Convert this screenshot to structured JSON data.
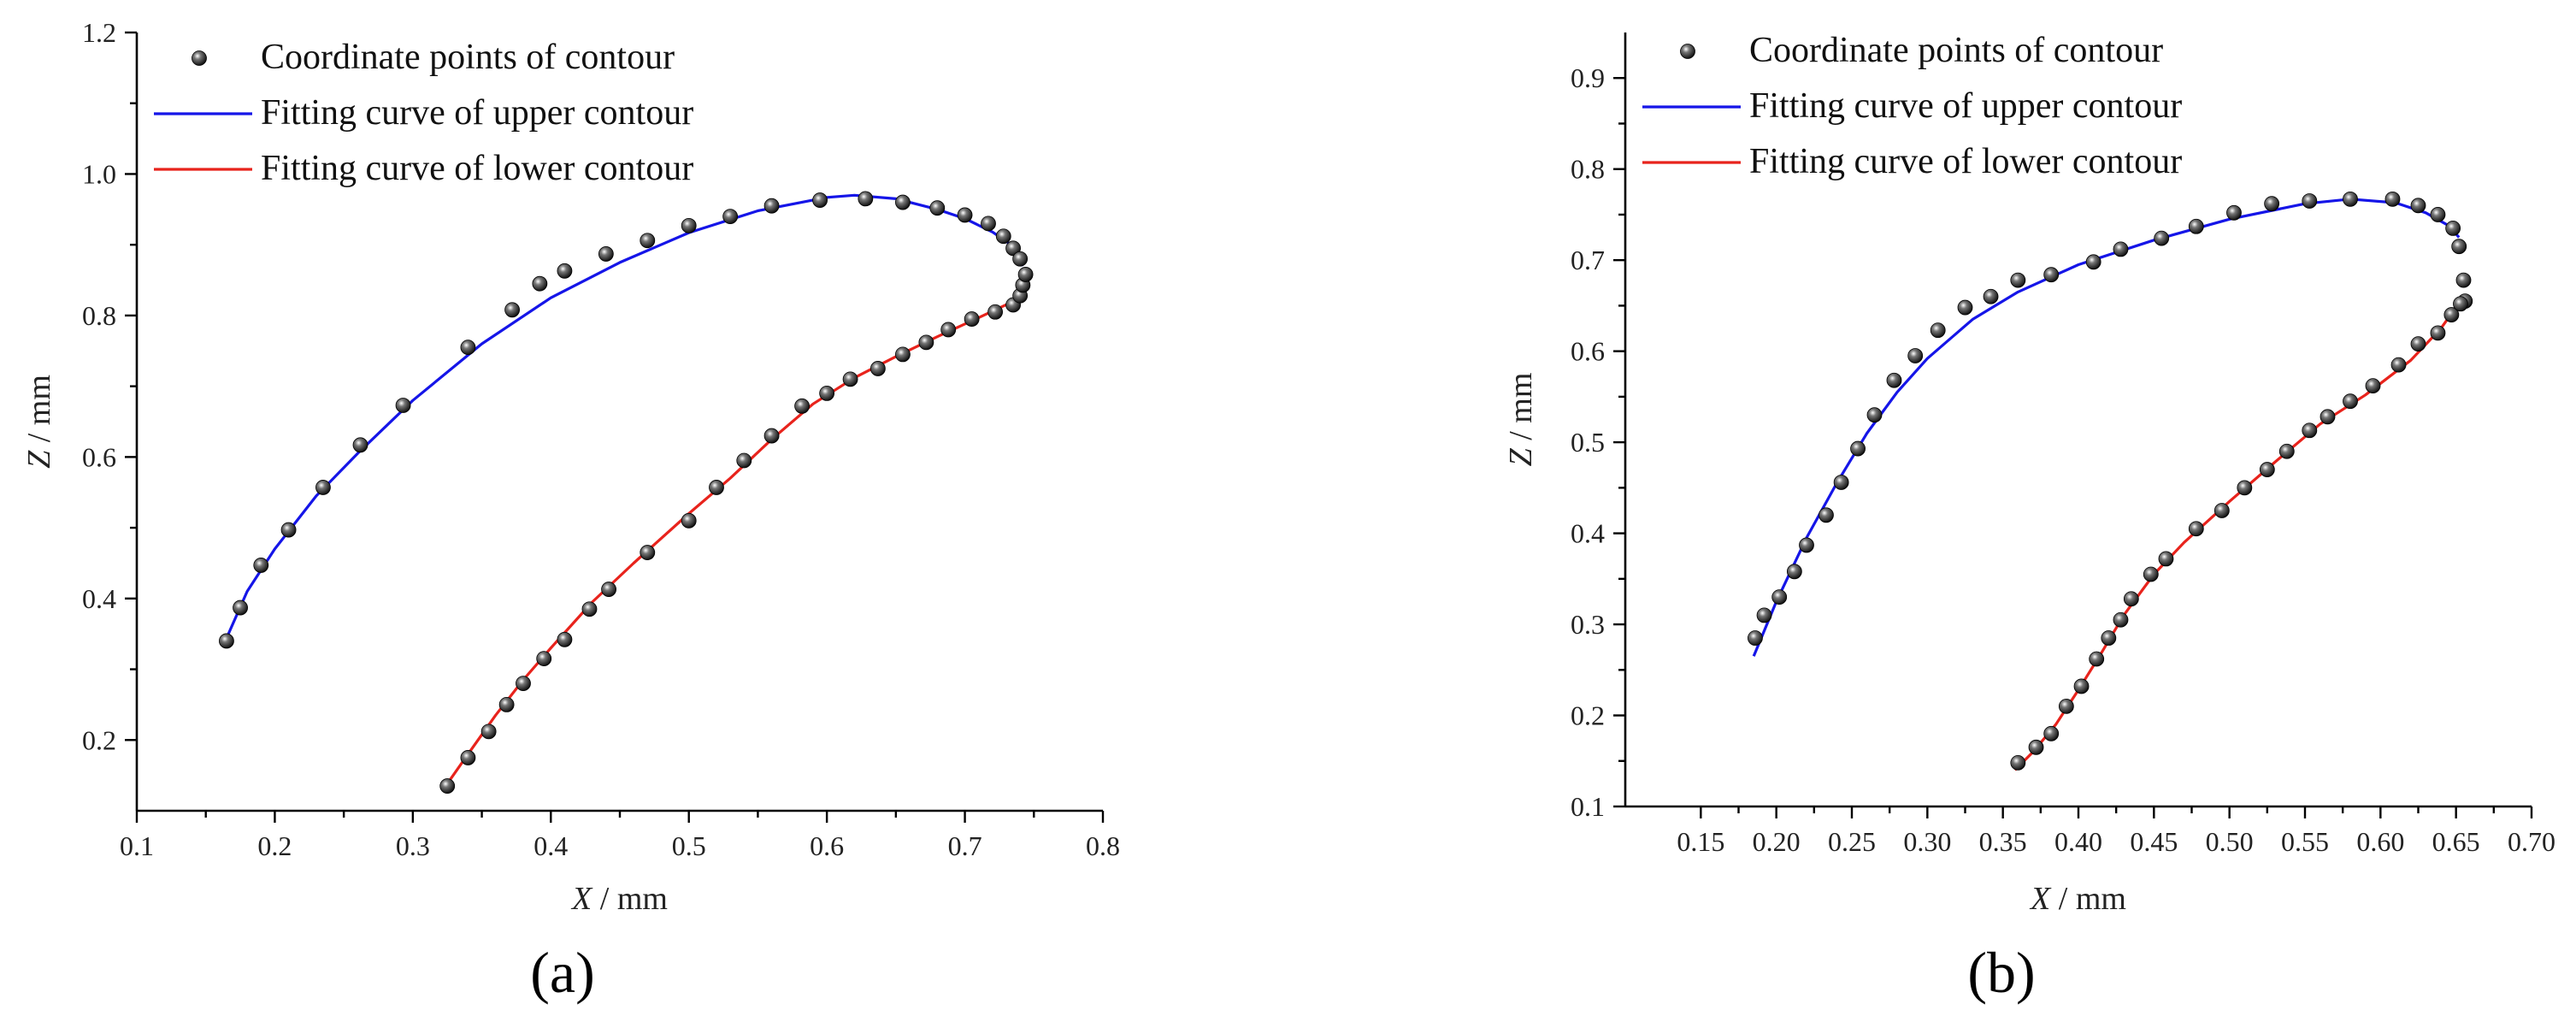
{
  "colors": {
    "upper": "#1515e8",
    "lower": "#e8231c",
    "point": "#111111"
  },
  "chart_data": [
    {
      "type": "scatter",
      "panel_label": "(a)",
      "xlabel_var": "X",
      "xlabel_unit": " / mm",
      "ylabel_var": "Z",
      "ylabel_unit": " / mm",
      "xlim": [
        0.1,
        0.8
      ],
      "ylim": [
        0.1,
        1.2
      ],
      "xticks": [
        0.1,
        0.2,
        0.3,
        0.4,
        0.5,
        0.6,
        0.7,
        0.8
      ],
      "xtick_labels": [
        "0.1",
        "0.2",
        "0.3",
        "0.4",
        "0.5",
        "0.6",
        "0.7",
        "0.8"
      ],
      "yticks": [
        0.2,
        0.4,
        0.6,
        0.8,
        1.0,
        1.2
      ],
      "ytick_labels": [
        "0.2",
        "0.4",
        "0.6",
        "0.8",
        "1.0",
        "1.2"
      ],
      "legend": {
        "points": "Coordinate points of contour",
        "upper": "Fitting curve of  upper contour",
        "lower": "Fitting curve of  lower contour"
      },
      "upper_points": {
        "x": [
          0.165,
          0.175,
          0.19,
          0.21,
          0.235,
          0.262,
          0.293,
          0.34,
          0.372,
          0.392,
          0.41,
          0.44,
          0.47,
          0.5,
          0.53,
          0.56,
          0.595,
          0.628,
          0.655,
          0.68,
          0.7,
          0.717,
          0.728,
          0.735,
          0.74
        ],
        "y": [
          0.34,
          0.387,
          0.447,
          0.497,
          0.557,
          0.617,
          0.673,
          0.755,
          0.808,
          0.845,
          0.863,
          0.887,
          0.906,
          0.927,
          0.94,
          0.955,
          0.963,
          0.965,
          0.96,
          0.952,
          0.942,
          0.93,
          0.912,
          0.895,
          0.88
        ]
      },
      "upper_curve": {
        "x": [
          0.163,
          0.18,
          0.2,
          0.23,
          0.26,
          0.3,
          0.35,
          0.4,
          0.45,
          0.5,
          0.55,
          0.6,
          0.62,
          0.65,
          0.68,
          0.7,
          0.72,
          0.735,
          0.742
        ],
        "y": [
          0.335,
          0.41,
          0.47,
          0.545,
          0.605,
          0.68,
          0.76,
          0.825,
          0.875,
          0.917,
          0.948,
          0.967,
          0.97,
          0.965,
          0.95,
          0.937,
          0.918,
          0.898,
          0.87
        ]
      },
      "lower_points": {
        "x": [
          0.325,
          0.34,
          0.355,
          0.368,
          0.38,
          0.395,
          0.41,
          0.428,
          0.442,
          0.47,
          0.5,
          0.52,
          0.54,
          0.56,
          0.582,
          0.6,
          0.617,
          0.637,
          0.655,
          0.672,
          0.688,
          0.705,
          0.722,
          0.735,
          0.74,
          0.742,
          0.744
        ],
        "y": [
          0.135,
          0.175,
          0.212,
          0.25,
          0.28,
          0.315,
          0.342,
          0.385,
          0.413,
          0.465,
          0.51,
          0.557,
          0.595,
          0.63,
          0.672,
          0.69,
          0.71,
          0.725,
          0.745,
          0.762,
          0.78,
          0.795,
          0.805,
          0.815,
          0.828,
          0.843,
          0.858
        ]
      },
      "lower_curve": {
        "x": [
          0.322,
          0.34,
          0.36,
          0.38,
          0.4,
          0.43,
          0.46,
          0.5,
          0.53,
          0.56,
          0.59,
          0.62,
          0.65,
          0.68,
          0.71,
          0.735,
          0.742
        ],
        "y": [
          0.13,
          0.18,
          0.235,
          0.285,
          0.33,
          0.395,
          0.45,
          0.52,
          0.57,
          0.625,
          0.675,
          0.712,
          0.742,
          0.77,
          0.797,
          0.82,
          0.83
        ]
      }
    },
    {
      "type": "scatter",
      "panel_label": "(b)",
      "xlabel_var": "X",
      "xlabel_unit": " / mm",
      "ylabel_var": "Z",
      "ylabel_unit": " / mm",
      "xlim": [
        0.1,
        0.7
      ],
      "ylim": [
        0.1,
        0.95
      ],
      "xticks": [
        0.15,
        0.2,
        0.25,
        0.3,
        0.35,
        0.4,
        0.45,
        0.5,
        0.55,
        0.6,
        0.65,
        0.7
      ],
      "xtick_labels": [
        "0.15",
        "0.20",
        "0.25",
        "0.30",
        "0.35",
        "0.40",
        "0.45",
        "0.50",
        "0.55",
        "0.60",
        "0.65",
        "0.70"
      ],
      "yticks": [
        0.1,
        0.2,
        0.3,
        0.4,
        0.5,
        0.6,
        0.7,
        0.8,
        0.9
      ],
      "ytick_labels": [
        "0.1",
        "0.2",
        "0.3",
        "0.4",
        "0.5",
        "0.6",
        "0.7",
        "0.8",
        "0.9"
      ],
      "legend": {
        "points": "Coordinate points of contour",
        "upper": "Fitting curve of  upper contour",
        "lower": "Fitting curve of  lower contour"
      },
      "upper_points": {
        "x": [
          0.186,
          0.192,
          0.202,
          0.212,
          0.22,
          0.233,
          0.243,
          0.254,
          0.265,
          0.278,
          0.292,
          0.307,
          0.325,
          0.342,
          0.36,
          0.382,
          0.41,
          0.428,
          0.455,
          0.478,
          0.503,
          0.528,
          0.553,
          0.58,
          0.608,
          0.625,
          0.638,
          0.648,
          0.652,
          0.655,
          0.656
        ],
        "y": [
          0.285,
          0.31,
          0.33,
          0.358,
          0.387,
          0.42,
          0.456,
          0.493,
          0.53,
          0.568,
          0.595,
          0.623,
          0.648,
          0.66,
          0.678,
          0.684,
          0.698,
          0.712,
          0.724,
          0.737,
          0.752,
          0.762,
          0.765,
          0.767,
          0.767,
          0.76,
          0.75,
          0.735,
          0.715,
          0.678,
          0.655
        ]
      },
      "upper_curve": {
        "x": [
          0.185,
          0.2,
          0.22,
          0.24,
          0.26,
          0.28,
          0.3,
          0.33,
          0.36,
          0.4,
          0.45,
          0.5,
          0.55,
          0.58,
          0.61,
          0.63,
          0.645,
          0.652
        ],
        "y": [
          0.265,
          0.325,
          0.395,
          0.455,
          0.51,
          0.555,
          0.592,
          0.635,
          0.665,
          0.695,
          0.722,
          0.745,
          0.762,
          0.767,
          0.763,
          0.752,
          0.738,
          0.725
        ]
      },
      "lower_points": {
        "x": [
          0.36,
          0.372,
          0.382,
          0.392,
          0.402,
          0.412,
          0.42,
          0.428,
          0.435,
          0.448,
          0.458,
          0.478,
          0.495,
          0.51,
          0.525,
          0.538,
          0.553,
          0.565,
          0.58,
          0.595,
          0.612,
          0.625,
          0.638,
          0.647,
          0.653
        ],
        "y": [
          0.148,
          0.165,
          0.18,
          0.21,
          0.232,
          0.262,
          0.285,
          0.305,
          0.328,
          0.355,
          0.372,
          0.405,
          0.425,
          0.45,
          0.47,
          0.49,
          0.513,
          0.528,
          0.545,
          0.562,
          0.585,
          0.608,
          0.62,
          0.64,
          0.652
        ]
      },
      "lower_curve": {
        "x": [
          0.358,
          0.37,
          0.385,
          0.4,
          0.415,
          0.43,
          0.45,
          0.47,
          0.5,
          0.53,
          0.56,
          0.59,
          0.62,
          0.64,
          0.655
        ],
        "y": [
          0.14,
          0.16,
          0.19,
          0.228,
          0.268,
          0.31,
          0.355,
          0.39,
          0.435,
          0.478,
          0.52,
          0.552,
          0.59,
          0.625,
          0.66
        ]
      }
    }
  ]
}
